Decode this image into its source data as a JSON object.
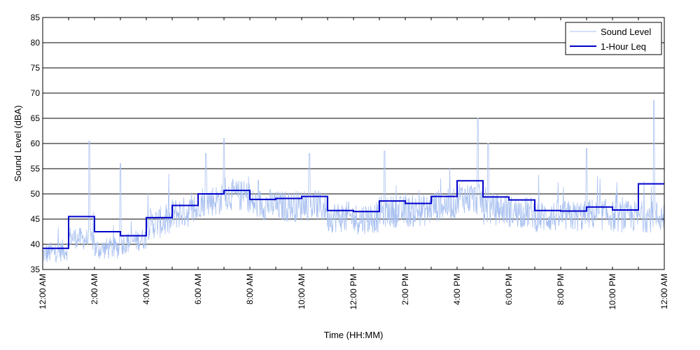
{
  "chart_data": {
    "type": "line",
    "title": "",
    "xlabel": "Time (HH:MM)",
    "ylabel": "Sound Level (dBA)",
    "xlim_hours": [
      0,
      24
    ],
    "ylim": [
      35,
      85
    ],
    "grid": "horizontal",
    "legend": "top-right",
    "y_ticks": [
      35,
      40,
      45,
      50,
      55,
      60,
      65,
      70,
      75,
      80,
      85
    ],
    "x_ticks": [
      {
        "hour": 0,
        "label": "12:00 AM"
      },
      {
        "hour": 2,
        "label": "2:00 AM"
      },
      {
        "hour": 4,
        "label": "4:00 AM"
      },
      {
        "hour": 6,
        "label": "6:00 AM"
      },
      {
        "hour": 8,
        "label": "8:00 AM"
      },
      {
        "hour": 10,
        "label": "10:00 AM"
      },
      {
        "hour": 12,
        "label": "12:00 PM"
      },
      {
        "hour": 14,
        "label": "2:00 PM"
      },
      {
        "hour": 16,
        "label": "4:00 PM"
      },
      {
        "hour": 18,
        "label": "6:00 PM"
      },
      {
        "hour": 20,
        "label": "8:00 PM"
      },
      {
        "hour": 22,
        "label": "10:00 PM"
      },
      {
        "hour": 24,
        "label": "12:00 AM"
      }
    ],
    "series": [
      {
        "name": "Sound Level",
        "color": "#a8c0f0",
        "hourly_mean": [
          38.0,
          41.5,
          39.0,
          40.0,
          44.0,
          46.0,
          48.5,
          50.0,
          48.0,
          47.5,
          48.0,
          45.5,
          45.0,
          46.5,
          46.5,
          47.5,
          49.5,
          47.0,
          46.5,
          45.5,
          45.5,
          46.0,
          45.5,
          45.5
        ],
        "spikes": [
          {
            "hour": 1.8,
            "value": 60.5
          },
          {
            "hour": 3.0,
            "value": 56.0
          },
          {
            "hour": 6.3,
            "value": 58.0
          },
          {
            "hour": 7.0,
            "value": 61.0
          },
          {
            "hour": 10.3,
            "value": 58.0
          },
          {
            "hour": 13.2,
            "value": 58.5
          },
          {
            "hour": 16.8,
            "value": 65.0
          },
          {
            "hour": 17.2,
            "value": 60.0
          },
          {
            "hour": 21.0,
            "value": 59.0
          },
          {
            "hour": 23.6,
            "value": 68.5
          }
        ]
      },
      {
        "name": "1-Hour Leq",
        "color": "#0000cc",
        "values": [
          39.2,
          45.5,
          42.5,
          41.7,
          45.3,
          47.7,
          50.0,
          50.7,
          48.9,
          49.1,
          49.5,
          46.7,
          46.5,
          48.6,
          48.1,
          49.5,
          52.6,
          49.4,
          48.8,
          46.7,
          46.6,
          47.4,
          46.8,
          52.0
        ]
      }
    ]
  }
}
